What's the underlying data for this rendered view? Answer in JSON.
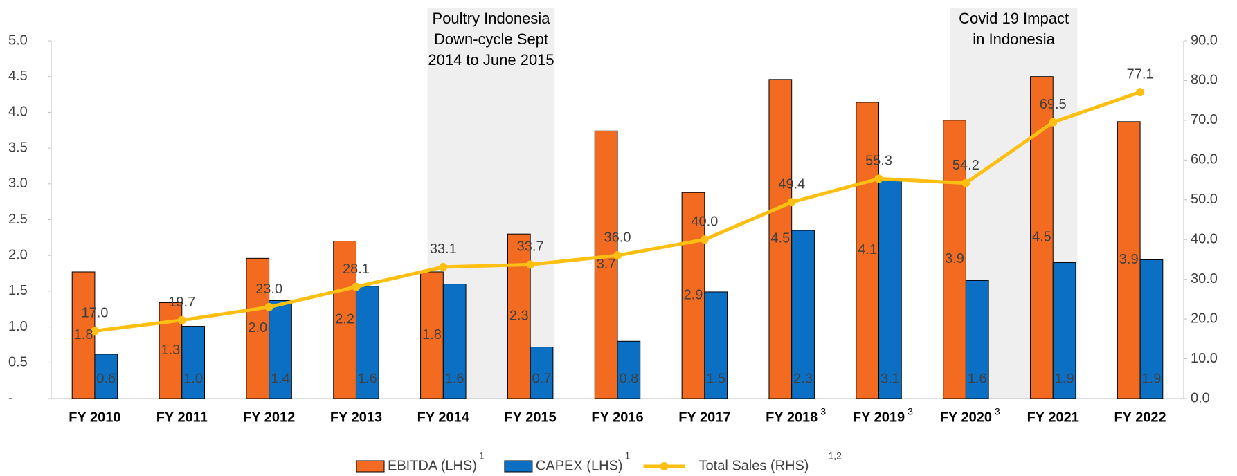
{
  "chart_data": {
    "type": "bar_line",
    "categories": [
      "FY 2010",
      "FY 2011",
      "FY 2012",
      "FY 2013",
      "FY 2014",
      "FY 2015",
      "FY 2016",
      "FY 2017",
      "FY 2018",
      "FY 2019",
      "FY 2020",
      "FY 2021",
      "FY 2022"
    ],
    "category_notes": [
      null,
      null,
      null,
      null,
      null,
      null,
      null,
      null,
      "3",
      "3",
      "3",
      null,
      null
    ],
    "series": [
      {
        "name": "EBITDA (LHS)",
        "note": "1",
        "type": "bar",
        "color": "#f26b21",
        "values": [
          1.77,
          1.34,
          1.96,
          2.2,
          1.77,
          2.3,
          3.74,
          2.88,
          4.46,
          4.14,
          3.89,
          4.5,
          3.87
        ],
        "value_labels": [
          "1.8",
          "1.3",
          "2.0",
          "2.2",
          "1.8",
          "2.3",
          "3.7",
          "2.9",
          "4.5",
          "4.1",
          "3.9",
          "4.5",
          "3.9"
        ]
      },
      {
        "name": "CAPEX (LHS)",
        "note": "1",
        "type": "bar",
        "color": "#0b6fc4",
        "values": [
          0.62,
          1.01,
          1.37,
          1.57,
          1.6,
          0.72,
          0.8,
          1.49,
          2.35,
          3.07,
          1.65,
          1.9,
          1.94
        ],
        "value_labels": [
          "0.6",
          "1.0",
          "1.4",
          "1.6",
          "1.6",
          "0.7",
          "0.8",
          "1.5",
          "2.3",
          "3.1",
          "1.6",
          "1.9",
          "1.9"
        ]
      },
      {
        "name": "Total Sales (RHS)",
        "note": "1,2",
        "type": "line",
        "axis": "y2",
        "color": "#fdbf12",
        "values": [
          17.0,
          19.7,
          23.0,
          28.1,
          33.1,
          33.7,
          36.0,
          40.0,
          49.4,
          55.3,
          54.2,
          69.5,
          77.1
        ],
        "value_labels": [
          "17.0",
          "19.7",
          "23.0",
          "28.1",
          "33.1",
          "33.7",
          "36.0",
          "40.0",
          "49.4",
          "55.3",
          "54.2",
          "69.5",
          "77.1"
        ]
      }
    ],
    "ylim": [
      0,
      5
    ],
    "yticks": [
      {
        "value": 0,
        "label": "-"
      },
      0.5,
      {
        "value": 1,
        "label": "1.0"
      },
      1.5,
      {
        "value": 2,
        "label": "2.0"
      },
      2.5,
      {
        "value": 3,
        "label": "3.0"
      },
      3.5,
      {
        "value": 4,
        "label": "4.0"
      },
      4.5,
      {
        "value": 5,
        "label": "5.0"
      }
    ],
    "y2lim": [
      0,
      90
    ],
    "y2ticks": [
      {
        "value": 0,
        "label": "0.0"
      },
      {
        "value": 10,
        "label": "10.0"
      },
      {
        "value": 20,
        "label": "20.0"
      },
      {
        "value": 30,
        "label": "30.0"
      },
      {
        "value": 40,
        "label": "40.0"
      },
      {
        "value": 50,
        "label": "50.0"
      },
      {
        "value": 60,
        "label": "60.0"
      },
      {
        "value": 70,
        "label": "70.0"
      },
      {
        "value": 80,
        "label": "80.0"
      },
      {
        "value": 90,
        "label": "90.0"
      }
    ],
    "annotations": [
      {
        "lines": [
          "Poultry Indonesia",
          "Down-cycle Sept",
          "2014 to June 2015"
        ],
        "from": "FY 2014",
        "to": "FY 2015"
      },
      {
        "lines": [
          "Covid 19 Impact",
          "in Indonesia"
        ],
        "from": "FY 2020",
        "to": "FY 2021"
      }
    ],
    "legend": "bottom"
  }
}
